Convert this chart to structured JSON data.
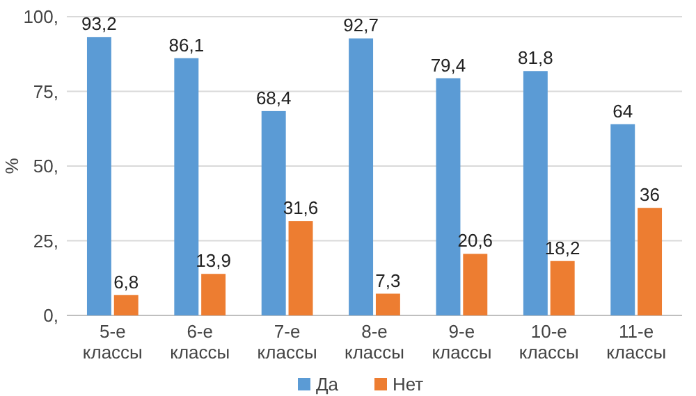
{
  "chart_data": {
    "type": "bar",
    "ylabel": "%",
    "categories": [
      "5-е классы",
      "6-е классы",
      "7-е классы",
      "8-е классы",
      "9-е классы",
      "10-е классы",
      "11-е классы"
    ],
    "series": [
      {
        "name": "Да",
        "color": "#5b9bd5",
        "values": [
          93.2,
          86.1,
          68.4,
          92.7,
          79.4,
          81.8,
          64
        ],
        "value_labels": [
          "93,2",
          "86,1",
          "68,4",
          "92,7",
          "79,4",
          "81,8",
          "64"
        ]
      },
      {
        "name": "Нет",
        "color": "#ed7d31",
        "values": [
          6.8,
          13.9,
          31.6,
          7.3,
          20.6,
          18.2,
          36
        ],
        "value_labels": [
          "6,8",
          "13,9",
          "31,6",
          "7,3",
          "20,6",
          "18,2",
          "36"
        ]
      }
    ],
    "ylim": [
      0,
      100
    ],
    "yticks": [
      {
        "value": 0,
        "label": "0,"
      },
      {
        "value": 25,
        "label": "25,"
      },
      {
        "value": 50,
        "label": "50,"
      },
      {
        "value": 75,
        "label": "75,"
      },
      {
        "value": 100,
        "label": "100,"
      }
    ],
    "grid": "y",
    "legend": "bottom"
  }
}
